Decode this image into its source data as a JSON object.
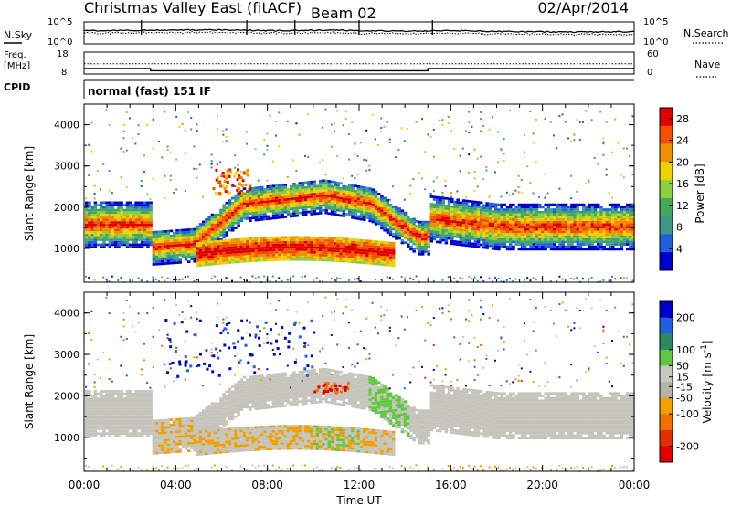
{
  "header": {
    "title": "Christmas Valley East (fitACF)",
    "beam": "Beam 02",
    "date": "02/Apr/2014"
  },
  "colors": {
    "power_scale": [
      "#0000cc",
      "#2060e0",
      "#3c9a88",
      "#46a85a",
      "#8cd040",
      "#f0d000",
      "#f09000",
      "#f05000",
      "#e00000"
    ],
    "velocity_scale": [
      "#0000cc",
      "#2060e0",
      "#2a8a60",
      "#60c840",
      "#c8c8c0",
      "#b4b4aa",
      "#f0a000",
      "#f07000",
      "#e03000",
      "#e00000"
    ],
    "gray_scatter": "#c4c4bc"
  },
  "chart_data": [
    {
      "type": "line",
      "name": "noise",
      "left_label": "N.Sky",
      "right_label": "N.Search",
      "y_ticks_left": [
        "10^5",
        "10^0"
      ],
      "y_ticks_right": [
        "10^5",
        "10^0"
      ],
      "x": [
        "00:00",
        "04:00",
        "08:00",
        "12:00",
        "16:00",
        "20:00",
        "00:00"
      ],
      "series": [
        {
          "values_approx_log10": [
            3.0,
            3.1,
            3.2,
            3.0,
            3.1,
            2.9,
            3.0,
            2.8,
            2.7,
            2.8
          ]
        }
      ]
    },
    {
      "type": "line",
      "name": "frequency",
      "left_label": "Freq.",
      "left_unit": "[MHz]",
      "right_label": "Nave",
      "y_ticks_left": [
        "18",
        "8"
      ],
      "y_ticks_right": [
        "60",
        "0"
      ],
      "series": [
        {
          "name": "Freq",
          "x_hours": [
            0,
            2.9,
            2.9,
            15.0,
            15.0,
            24
          ],
          "values": [
            10.5,
            10.5,
            9.5,
            9.5,
            10.5,
            10.5
          ]
        },
        {
          "name": "Nave",
          "x_hours": [
            0,
            24
          ],
          "values": [
            28,
            28
          ]
        }
      ]
    },
    {
      "type": "text",
      "name": "cpid",
      "label": "CPID",
      "value": "normal (fast) 151 IF"
    },
    {
      "type": "heatmap",
      "name": "power",
      "ylabel": "Slant Range [km]",
      "yticks": [
        1000,
        2000,
        3000,
        4000
      ],
      "ylim": [
        180,
        4500
      ],
      "xlim_hours": [
        0,
        24
      ],
      "colorbar": {
        "label": "Power [dB]",
        "ticks": [
          4,
          8,
          12,
          16,
          20,
          24,
          28
        ],
        "range": [
          0,
          30
        ]
      }
    },
    {
      "type": "heatmap",
      "name": "velocity",
      "ylabel": "Slant Range [km]",
      "yticks": [
        1000,
        2000,
        3000,
        4000
      ],
      "ylim": [
        180,
        4500
      ],
      "xlim_hours": [
        0,
        24
      ],
      "xlabel": "Time UT",
      "xticks": [
        "00:00",
        "04:00",
        "08:00",
        "12:00",
        "16:00",
        "20:00",
        "00:00"
      ],
      "colorbar": {
        "label": "Velocity [m s",
        "label_sup": "-1",
        "label_end": "]",
        "ticks": [
          200,
          100,
          50,
          15,
          -15,
          -50,
          -100,
          -200
        ],
        "range": [
          -250,
          250
        ]
      }
    }
  ]
}
